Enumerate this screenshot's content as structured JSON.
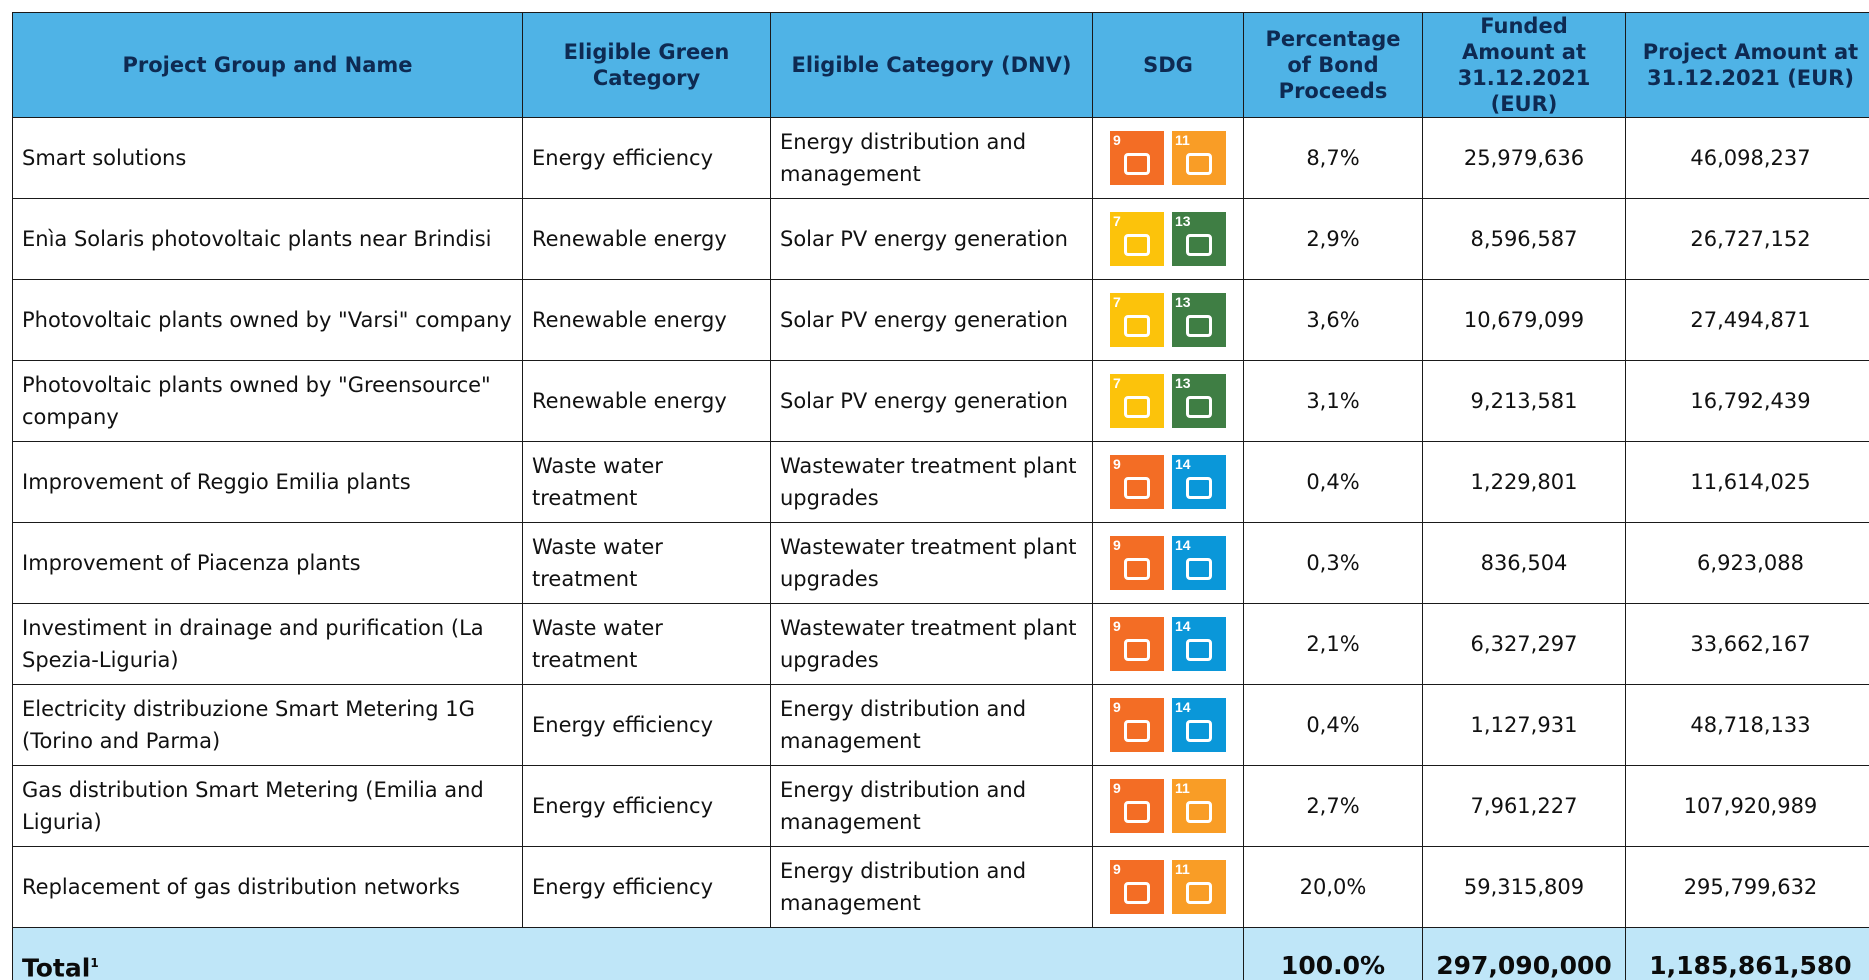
{
  "table": {
    "headers": [
      "Project Group and Name",
      "Eligible Green Category",
      "Eligible Category (DNV)",
      "SDG",
      "Percentage of Bond Proceeds",
      "Funded Amount at 31.12.2021 (EUR)",
      "Project Amount at 31.12.2021 (EUR)"
    ],
    "rows": [
      [
        "Smart solutions",
        "Energy efficiency",
        "Energy distribution and management",
        [
          "9",
          "11"
        ],
        "8,7%",
        "25,979,636",
        "46,098,237"
      ],
      [
        "Enìa Solaris photovoltaic plants near Brindisi",
        "Renewable energy",
        "Solar PV energy generation",
        [
          "7",
          "13"
        ],
        "2,9%",
        "8,596,587",
        "26,727,152"
      ],
      [
        "Photovoltaic plants owned by \"Varsi\" company",
        "Renewable energy",
        "Solar PV energy generation",
        [
          "7",
          "13"
        ],
        "3,6%",
        "10,679,099",
        "27,494,871"
      ],
      [
        "Photovoltaic plants owned by \"Greensource\" company",
        "Renewable energy",
        "Solar PV energy generation",
        [
          "7",
          "13"
        ],
        "3,1%",
        "9,213,581",
        "16,792,439"
      ],
      [
        "Improvement of Reggio Emilia plants",
        "Waste water treatment",
        "Wastewater treatment plant upgrades",
        [
          "9",
          "14"
        ],
        "0,4%",
        "1,229,801",
        "11,614,025"
      ],
      [
        "Improvement of Piacenza plants",
        "Waste water treatment",
        "Wastewater treatment plant upgrades",
        [
          "9",
          "14"
        ],
        "0,3%",
        "836,504",
        "6,923,088"
      ],
      [
        "Investiment in drainage and purification (La Spezia-Liguria)",
        "Waste water treatment",
        "Wastewater treatment plant upgrades",
        [
          "9",
          "14"
        ],
        "2,1%",
        "6,327,297",
        "33,662,167"
      ],
      [
        "Electricity distribuzione Smart Metering 1G (Torino and Parma)",
        "Energy efficiency",
        "Energy distribution and management",
        [
          "9",
          "14"
        ],
        "0,4%",
        "1,127,931",
        "48,718,133"
      ],
      [
        "Gas distribution Smart Metering (Emilia and Liguria)",
        "Energy efficiency",
        "Energy distribution and management",
        [
          "9",
          "11"
        ],
        "2,7%",
        "7,961,227",
        "107,920,989"
      ],
      [
        "Replacement of gas distribution networks",
        "Energy efficiency",
        "Energy distribution and management",
        [
          "9",
          "11"
        ],
        "20,0%",
        "59,315,809",
        "295,799,632"
      ]
    ],
    "total": {
      "label": "Total",
      "footnote": "1",
      "percentage": "100.0%",
      "funded": "297,090,000",
      "project": "1,185,861,580"
    }
  }
}
